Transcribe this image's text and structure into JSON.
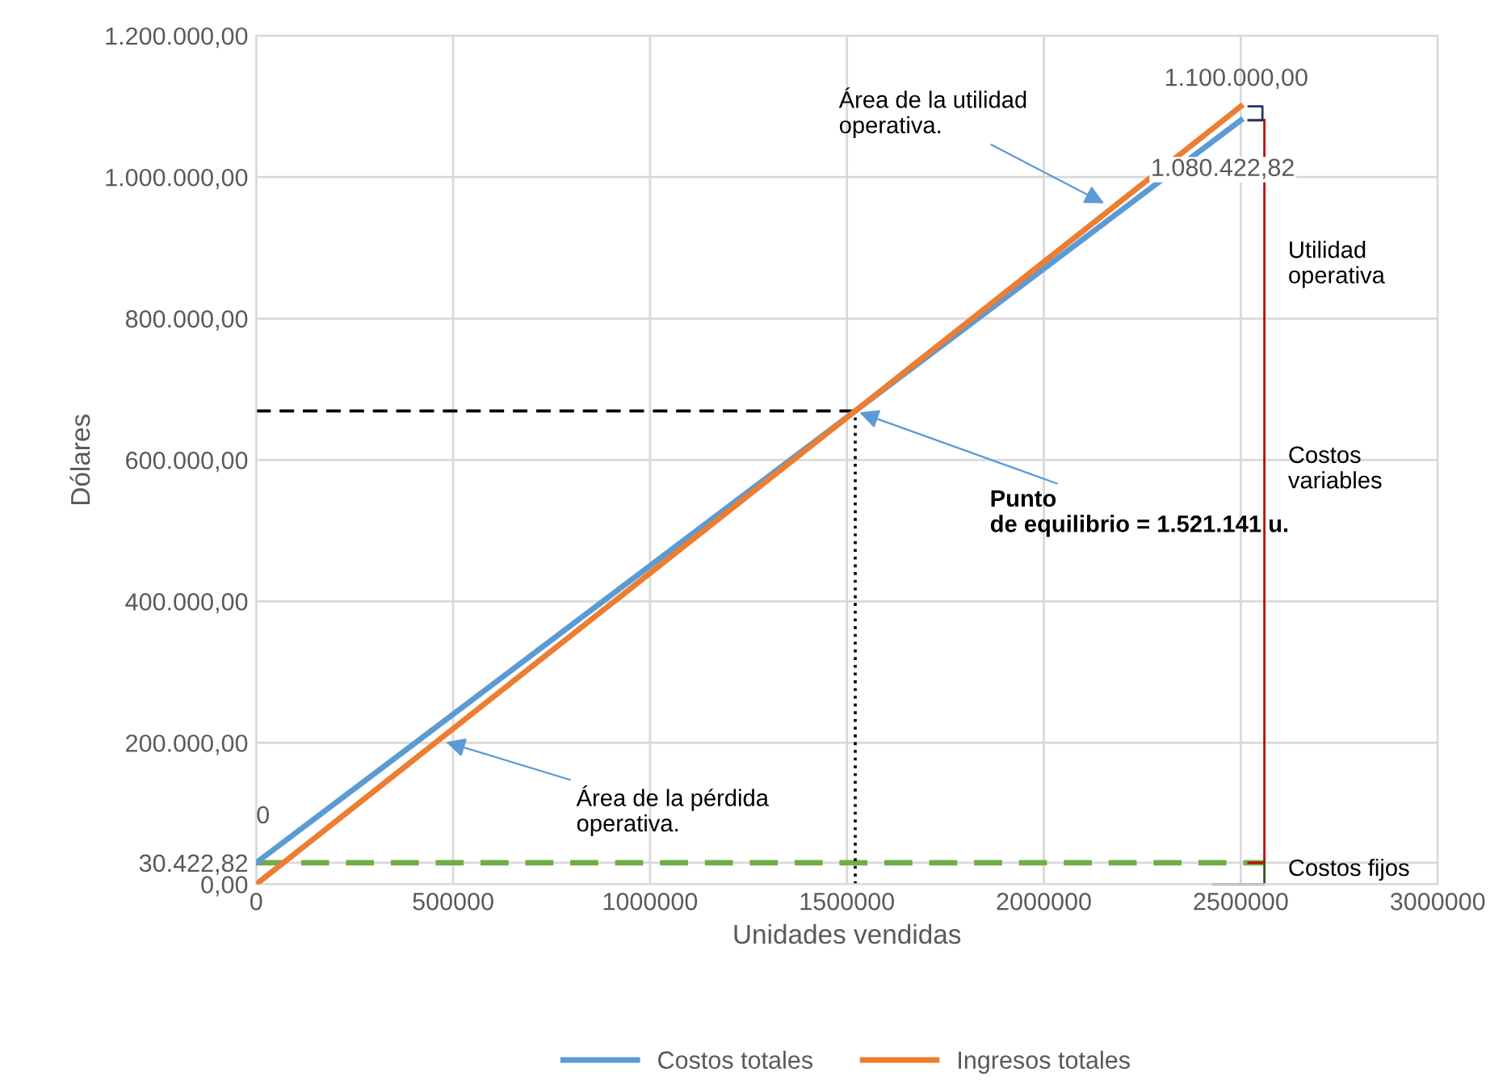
{
  "chart_data": {
    "type": "line",
    "xlabel": "Unidades vendidas",
    "ylabel": "Dólares",
    "x": [
      0,
      2500000
    ],
    "series": [
      {
        "name": "Costos totales",
        "color": "#5b9bd5",
        "values": [
          30422.82,
          1080422.82
        ],
        "value_labels": [
          null,
          "1.080.422,82"
        ]
      },
      {
        "name": "Ingresos totales",
        "color": "#ed7d31",
        "values": [
          0,
          1100000
        ],
        "value_labels": [
          "0",
          "1.100.000,00"
        ]
      },
      {
        "color": "#70ad47",
        "line_style": "dashed",
        "x": [
          0,
          2560000
        ],
        "values": [
          30422.82,
          30422.82
        ]
      },
      {
        "color": "#000000",
        "line_style": "dashed",
        "x": [
          0,
          1521141
        ],
        "values": [
          669302,
          669302
        ]
      },
      {
        "color": "#000000",
        "line_style": "dotted",
        "x": [
          1521141,
          1521141
        ],
        "values": [
          0,
          669302
        ]
      },
      {
        "color": "#c00000",
        "line_style": "solid",
        "x": [
          2560000,
          2560000
        ],
        "values": [
          30422.82,
          1080422.82
        ]
      }
    ],
    "xlim": [
      0,
      3000000
    ],
    "xticks": [
      0,
      500000,
      1000000,
      1500000,
      2000000,
      2500000,
      3000000
    ],
    "ylim": [
      0,
      1200000
    ],
    "yticks": [
      {
        "value": 0,
        "label": "0,00"
      },
      {
        "value": 30422.82,
        "label": "30.422,82"
      },
      {
        "value": 200000,
        "label": "200.000,00"
      },
      {
        "value": 400000,
        "label": "400.000,00"
      },
      {
        "value": 600000,
        "label": "600.000,00"
      },
      {
        "value": 800000,
        "label": "800.000,00"
      },
      {
        "value": 1000000,
        "label": "1.000.000,00"
      },
      {
        "value": 1200000,
        "label": "1.200.000,00"
      }
    ],
    "annotations": [
      {
        "text": "Área de la utilidad\noperativa.",
        "x": 2163000,
        "y": 960000
      },
      {
        "text": "Punto\nde equilibrio = 1.521.141 u.",
        "x": 1521141,
        "y": 669302
      },
      {
        "text": "Área de la pérdida\noperativa.",
        "x": 471000,
        "y": 203000
      },
      "Utilidad\noperativa",
      "Costos\nvariables",
      "Costos fijos"
    ],
    "grid": true,
    "legend": "bottom",
    "marker": "none",
    "line_style": "solid"
  }
}
